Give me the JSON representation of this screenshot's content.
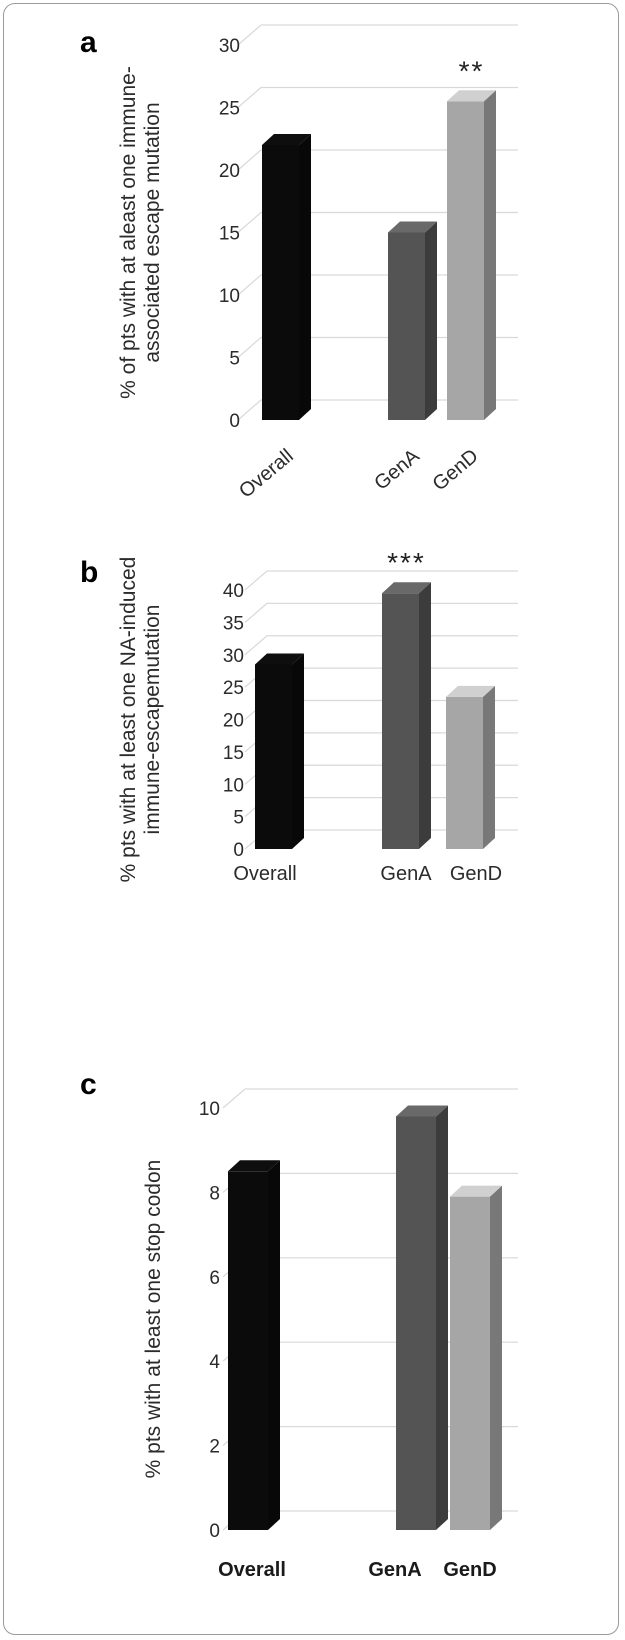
{
  "colors": {
    "Overall": "#0b0b0b",
    "GenA": "#545454",
    "GenD": "#a6a6a6",
    "grid": "#d9d9d9",
    "frame": "#9a9a9a"
  },
  "chart_data": [
    {
      "panel": "a",
      "type": "bar",
      "categories": [
        "Overall",
        "GenA",
        "GenD"
      ],
      "values": [
        22,
        15,
        25.5
      ],
      "significance": [
        "",
        "",
        "**"
      ],
      "ylabel": [
        "% of pts with at aleast one immune-",
        "associated escape mutation"
      ],
      "ylim": [
        0,
        30
      ],
      "yticks": [
        0,
        5,
        10,
        15,
        20,
        25,
        30
      ],
      "grid": true,
      "category_label_style": "rotated"
    },
    {
      "panel": "b",
      "type": "bar",
      "categories": [
        "Overall",
        "GenA",
        "GenD"
      ],
      "values": [
        28.5,
        39.5,
        23.5
      ],
      "significance": [
        "",
        "***",
        ""
      ],
      "ylabel": [
        "% pts with at least one NA-induced",
        "immune-escapemutation"
      ],
      "ylim": [
        0,
        40
      ],
      "yticks": [
        0,
        5,
        10,
        15,
        20,
        25,
        30,
        35,
        40
      ],
      "grid": true,
      "category_label_style": "horizontal"
    },
    {
      "panel": "c",
      "type": "bar",
      "categories": [
        "Overall",
        "GenA",
        "GenD"
      ],
      "values": [
        8.5,
        9.8,
        7.9
      ],
      "significance": [
        "",
        "",
        ""
      ],
      "ylabel": [
        "% pts with at least one stop codon"
      ],
      "ylim": [
        0,
        10
      ],
      "yticks": [
        0,
        2,
        4,
        6,
        8,
        10
      ],
      "grid": true,
      "category_label_style": "bold"
    }
  ]
}
